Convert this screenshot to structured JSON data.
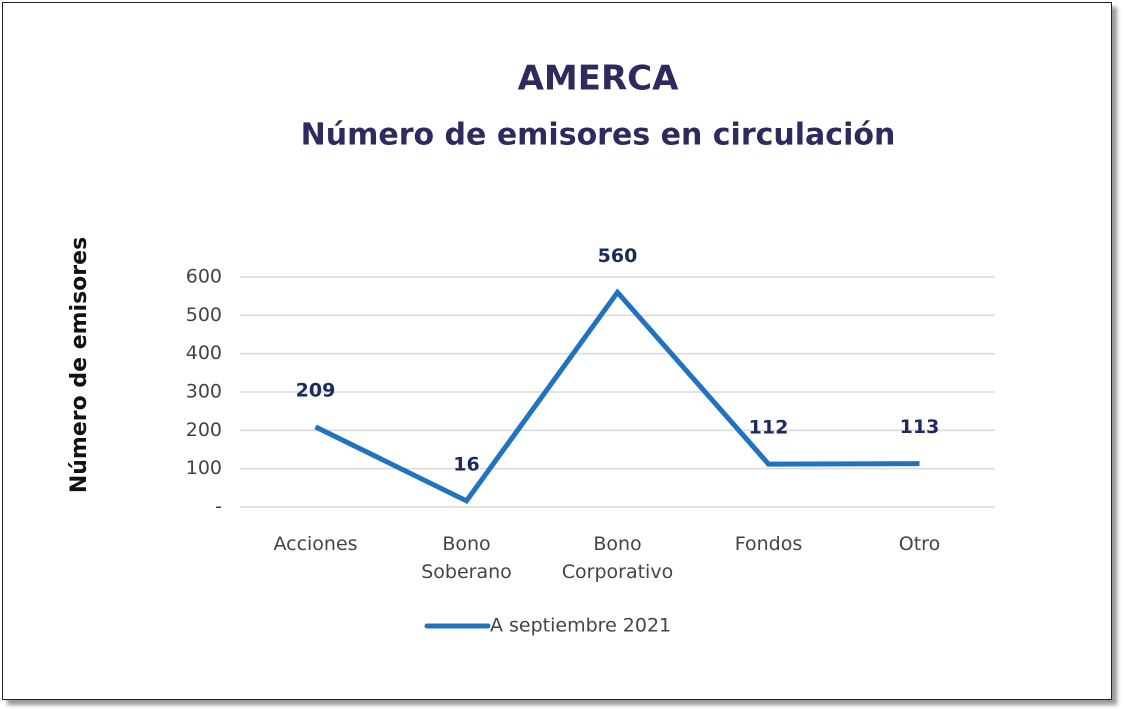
{
  "chart_data": {
    "type": "line",
    "title": "AMERCA",
    "subtitle": "Número de emisores en circulación",
    "y_label": "Número de emisores",
    "categories": [
      "Acciones",
      "Bono Soberano",
      "Bono Corporativo",
      "Fondos",
      "Otro"
    ],
    "series": [
      {
        "name": "A septiembre 2021",
        "color": "#1f73c1",
        "values": [
          209,
          16,
          560,
          112,
          113
        ]
      }
    ],
    "ylim": [
      0,
      600
    ],
    "yticks": [
      {
        "value": 0,
        "label": "-"
      },
      100,
      200,
      300,
      400,
      500,
      600
    ],
    "grid": true,
    "legend": "bottom"
  }
}
